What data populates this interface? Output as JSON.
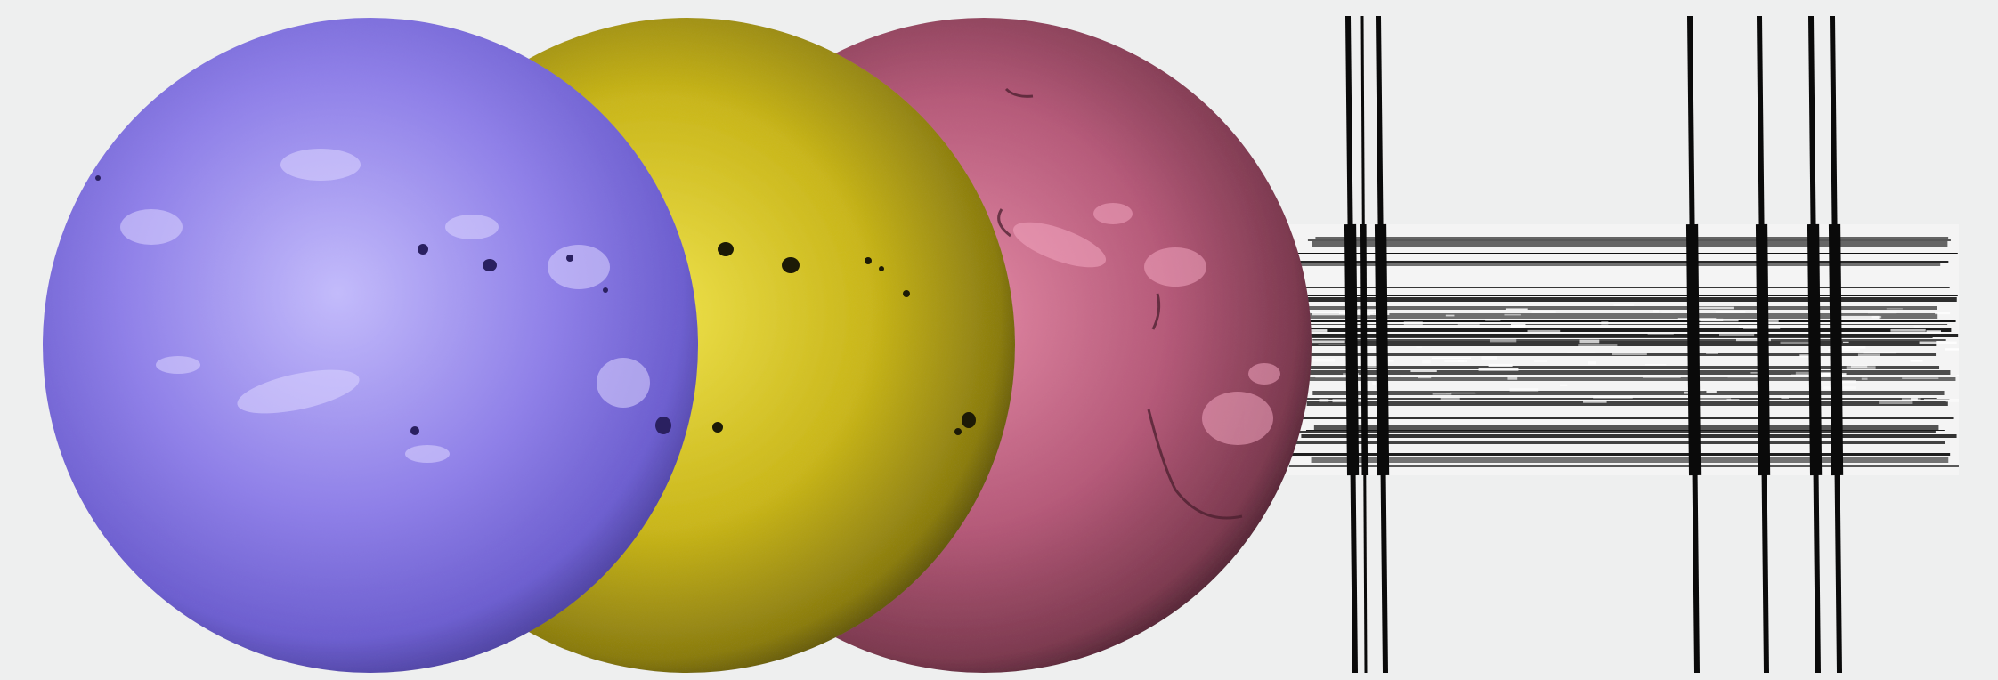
{
  "image": {
    "description_tokens": [
      "solar-disk-violet",
      "solar-disk-yellow",
      "solar-disk-red",
      "spectrum-strip"
    ],
    "background_color": "#eeefef",
    "disks": [
      {
        "name": "solar-disk-violet",
        "color": "#8272e0",
        "highlight": "#b7aef8",
        "shadow": "#5c4fb5",
        "features": "sunspots-and-plage"
      },
      {
        "name": "solar-disk-yellow",
        "color": "#c8b414",
        "highlight": "#ece04a",
        "shadow": "#6f6410",
        "features": "sunspots"
      },
      {
        "name": "solar-disk-red",
        "color": "#b35a78",
        "highlight": "#e58aa6",
        "shadow": "#6b3044",
        "features": "filaments-and-plage"
      }
    ],
    "spectrum": {
      "band_color": "#111111",
      "line_color": "#0a0a0a",
      "absorption_line_count": 7
    }
  }
}
